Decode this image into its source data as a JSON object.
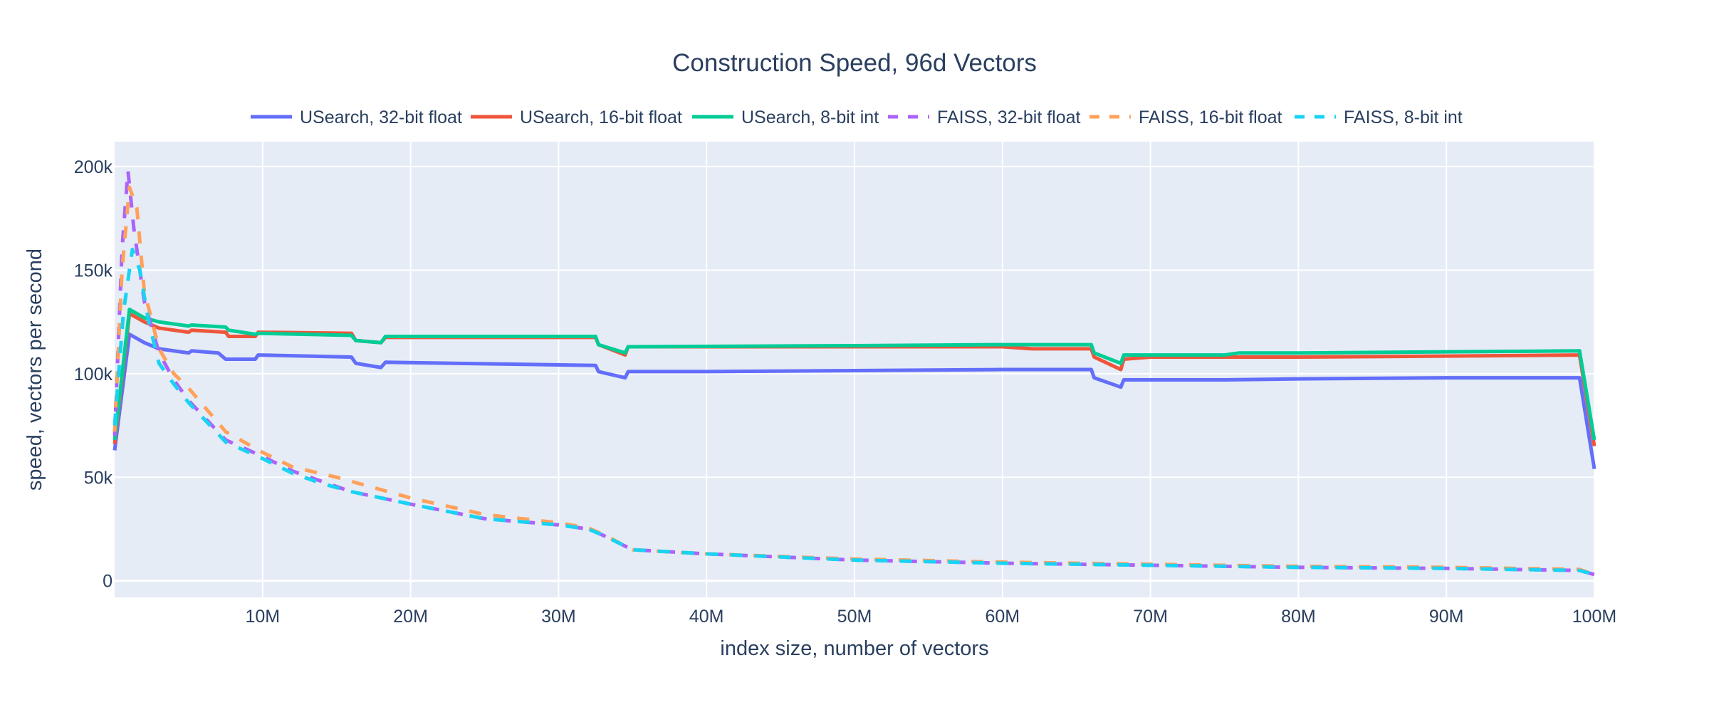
{
  "chart_data": {
    "type": "line",
    "title": "Construction Speed, 96d Vectors",
    "xlabel": "index size, number of vectors",
    "ylabel": "speed, vectors per second",
    "xlim": [
      0,
      100000000
    ],
    "ylim": [
      -8000,
      212000
    ],
    "grid": true,
    "legend_placement": "top",
    "background": "#E5ECF6",
    "x_ticks": [
      {
        "v": 10000000,
        "label": "10M"
      },
      {
        "v": 20000000,
        "label": "20M"
      },
      {
        "v": 30000000,
        "label": "30M"
      },
      {
        "v": 40000000,
        "label": "40M"
      },
      {
        "v": 50000000,
        "label": "50M"
      },
      {
        "v": 60000000,
        "label": "60M"
      },
      {
        "v": 70000000,
        "label": "70M"
      },
      {
        "v": 80000000,
        "label": "80M"
      },
      {
        "v": 90000000,
        "label": "90M"
      },
      {
        "v": 100000000,
        "label": "100M"
      }
    ],
    "y_ticks": [
      {
        "v": 0,
        "label": "0"
      },
      {
        "v": 50000,
        "label": "50k"
      },
      {
        "v": 100000,
        "label": "100k"
      },
      {
        "v": 150000,
        "label": "150k"
      },
      {
        "v": 200000,
        "label": "200k"
      }
    ],
    "series": [
      {
        "name": "USearch, 32-bit float",
        "color": "#636EFA",
        "dash": "solid",
        "x_millions": [
          0,
          1,
          2,
          3,
          5,
          5.2,
          7,
          7.5,
          9.5,
          9.7,
          16,
          16.3,
          18,
          18.3,
          32.5,
          32.7,
          34.5,
          34.7,
          40,
          50,
          60,
          66,
          66.2,
          68,
          68.2,
          75,
          80,
          90,
          99,
          100
        ],
        "y": [
          63000,
          119000,
          115000,
          112000,
          110000,
          111000,
          110000,
          107000,
          107000,
          109000,
          108000,
          105000,
          103000,
          105500,
          104000,
          101000,
          98000,
          101000,
          101000,
          101500,
          102000,
          102000,
          98000,
          93500,
          97000,
          97000,
          97500,
          98000,
          98000,
          54000
        ]
      },
      {
        "name": "USearch, 16-bit float",
        "color": "#EF553B",
        "dash": "solid",
        "x_millions": [
          0,
          1,
          2,
          3,
          5,
          5.2,
          7.5,
          7.7,
          9.5,
          9.7,
          16,
          16.3,
          18,
          18.3,
          32.5,
          32.7,
          34.5,
          34.7,
          50,
          60,
          62,
          66,
          66.2,
          68,
          68.2,
          70,
          80,
          90,
          99,
          100
        ],
        "y": [
          66000,
          129000,
          125000,
          122000,
          120000,
          121000,
          120000,
          118000,
          118000,
          120000,
          119500,
          116000,
          115000,
          117500,
          117500,
          114000,
          109000,
          113000,
          113000,
          113000,
          112000,
          112000,
          108000,
          102000,
          107000,
          108000,
          108000,
          108500,
          109000,
          65000
        ]
      },
      {
        "name": "USearch, 8-bit int",
        "color": "#00CC96",
        "dash": "solid",
        "x_millions": [
          0,
          1,
          2,
          3,
          5,
          5.2,
          7.5,
          7.7,
          9.5,
          9.7,
          16,
          16.3,
          18,
          18.3,
          32.5,
          32.7,
          34.5,
          34.7,
          50,
          60,
          66,
          66.2,
          68,
          68.2,
          75,
          76,
          80,
          99,
          100
        ],
        "y": [
          68000,
          131000,
          127000,
          125000,
          123000,
          123500,
          122500,
          121000,
          119000,
          119500,
          118500,
          116000,
          115000,
          118000,
          118000,
          114000,
          110000,
          113000,
          113500,
          114000,
          114000,
          110000,
          105000,
          109000,
          109000,
          110000,
          110000,
          111000,
          68000
        ]
      },
      {
        "name": "FAISS, 32-bit float",
        "color": "#AB63FA",
        "dash": "dash",
        "x_millions": [
          0,
          0.5,
          0.9,
          1.3,
          2,
          3,
          4,
          5,
          7.5,
          10,
          12,
          14,
          16,
          20,
          25,
          30,
          32,
          33,
          35,
          40,
          50,
          60,
          70,
          80,
          90,
          99,
          100
        ],
        "y": [
          70000,
          160000,
          198000,
          170000,
          135000,
          110000,
          97000,
          87000,
          68000,
          60000,
          53000,
          48000,
          43000,
          37000,
          30000,
          27000,
          25000,
          22000,
          15000,
          13000,
          10000,
          8500,
          7500,
          6500,
          6000,
          5000,
          3000
        ]
      },
      {
        "name": "FAISS, 16-bit float",
        "color": "#FFA15A",
        "dash": "dash",
        "x_millions": [
          0,
          0.5,
          1,
          1.5,
          2,
          3,
          4,
          5,
          7.5,
          10,
          12,
          15,
          20,
          25,
          30,
          32,
          33,
          35,
          40,
          50,
          60,
          70,
          80,
          90,
          99,
          100
        ],
        "y": [
          72000,
          150000,
          190000,
          180000,
          140000,
          112000,
          100000,
          93000,
          72000,
          62000,
          55000,
          50000,
          40000,
          32000,
          28000,
          25500,
          22500,
          15000,
          13000,
          10500,
          9000,
          8000,
          7000,
          6500,
          5500,
          3000
        ]
      },
      {
        "name": "FAISS, 8-bit int",
        "color": "#19D3F3",
        "dash": "dash",
        "x_millions": [
          0,
          0.6,
          1.2,
          1.7,
          2.3,
          3,
          4,
          5,
          7.5,
          10,
          12,
          14,
          16,
          20,
          25,
          30,
          32,
          33,
          35,
          40,
          50,
          60,
          70,
          80,
          90,
          99,
          100
        ],
        "y": [
          75000,
          130000,
          160000,
          150000,
          125000,
          105000,
          95000,
          86000,
          67000,
          59000,
          52000,
          47000,
          43000,
          37000,
          30000,
          27000,
          25000,
          22000,
          15000,
          13000,
          10000,
          8500,
          7500,
          6500,
          6000,
          5000,
          3000
        ]
      }
    ]
  }
}
